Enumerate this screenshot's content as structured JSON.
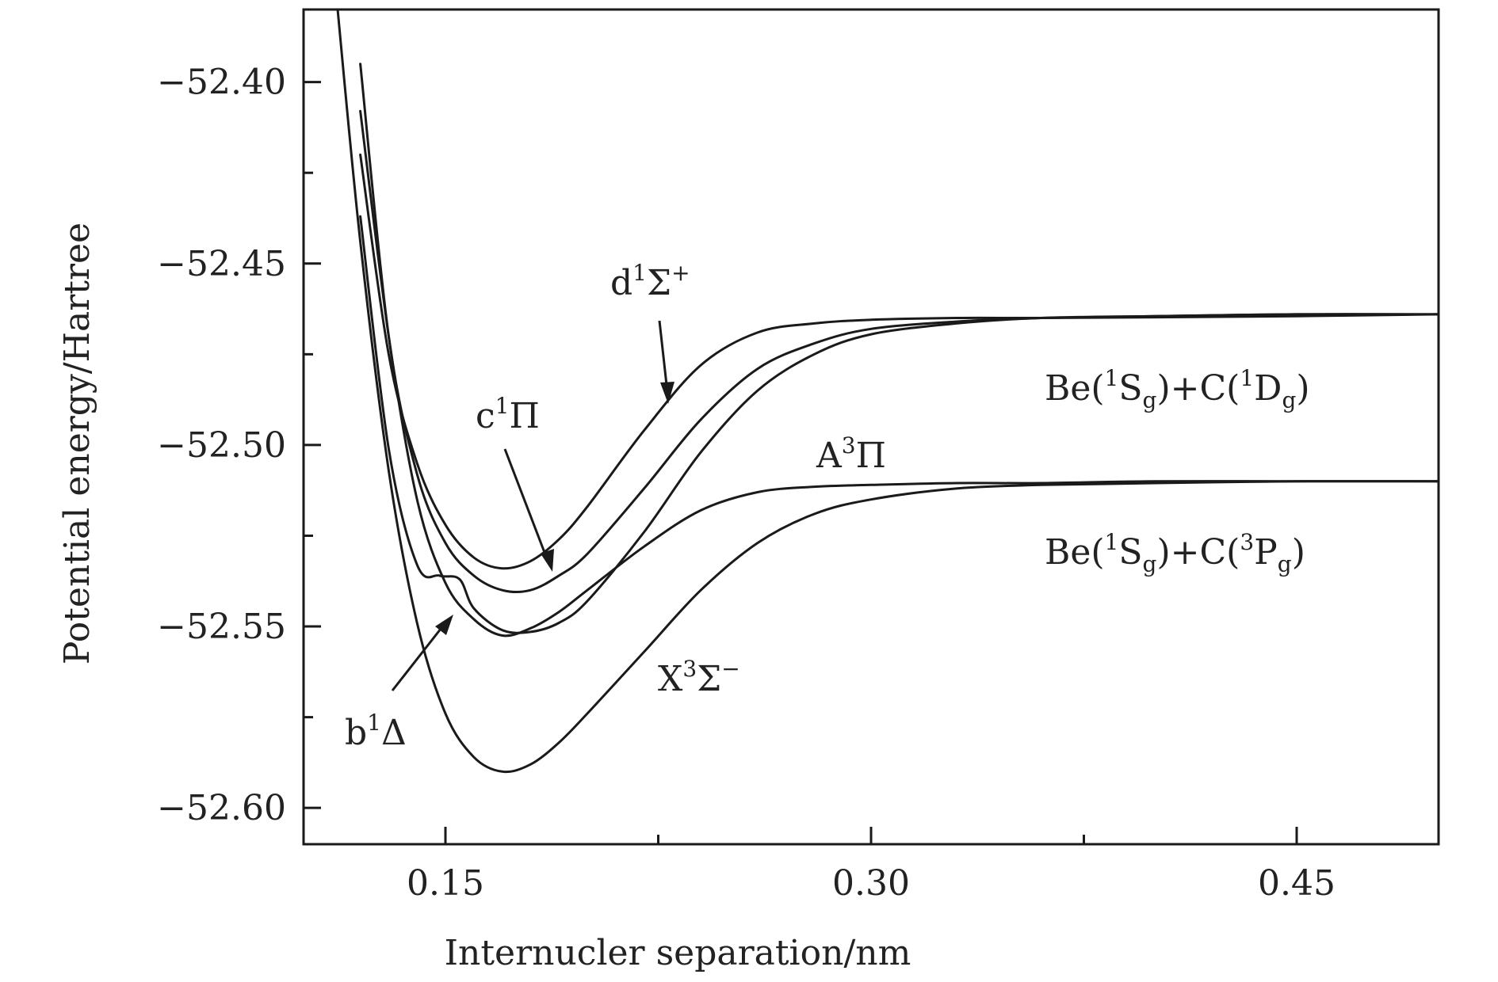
{
  "chart_data": {
    "type": "line",
    "xlabel": "Internucler separation/nm",
    "ylabel": "Potential energy/Hartree",
    "xlim": [
      0.1,
      0.5
    ],
    "ylim": [
      -52.61,
      -52.38
    ],
    "x_ticks": [
      0.15,
      0.3,
      0.45
    ],
    "x_tick_labels": [
      "0.15",
      "0.30",
      "0.45"
    ],
    "x_minor_ticks": [
      0.225,
      0.375
    ],
    "y_ticks": [
      -52.4,
      -52.45,
      -52.5,
      -52.55,
      -52.6
    ],
    "y_tick_labels": [
      "−52.40",
      "−52.45",
      "−52.50",
      "−52.55",
      "−52.60"
    ],
    "y_minor_ticks": [
      -52.425,
      -52.475,
      -52.525,
      -52.575
    ],
    "grid": false,
    "series": [
      {
        "name": "X³Σ⁻",
        "x": [
          0.112,
          0.12,
          0.13,
          0.14,
          0.15,
          0.16,
          0.17,
          0.18,
          0.19,
          0.2,
          0.22,
          0.24,
          0.26,
          0.28,
          0.3,
          0.33,
          0.36,
          0.4,
          0.45,
          0.5
        ],
        "y": [
          -52.38,
          -52.444,
          -52.507,
          -52.549,
          -52.574,
          -52.586,
          -52.59,
          -52.588,
          -52.582,
          -52.574,
          -52.557,
          -52.54,
          -52.527,
          -52.519,
          -52.515,
          -52.512,
          -52.511,
          -52.5105,
          -52.51,
          -52.51
        ]
      },
      {
        "name": "A³Π",
        "x": [
          0.12,
          0.13,
          0.14,
          0.15,
          0.16,
          0.17,
          0.18,
          0.19,
          0.2,
          0.22,
          0.24,
          0.26,
          0.28,
          0.3,
          0.33,
          0.36,
          0.4,
          0.45,
          0.5
        ],
        "y": [
          -52.408,
          -52.47,
          -52.515,
          -52.538,
          -52.548,
          -52.5525,
          -52.5505,
          -52.546,
          -52.54,
          -52.528,
          -52.518,
          -52.513,
          -52.5115,
          -52.511,
          -52.5105,
          -52.5105,
          -52.51,
          -52.51,
          -52.51
        ]
      },
      {
        "name": "b¹Δ",
        "x": [
          0.12,
          0.13,
          0.14,
          0.148,
          0.155,
          0.16,
          0.17,
          0.18,
          0.19,
          0.2,
          0.22,
          0.24,
          0.26,
          0.28,
          0.3,
          0.33,
          0.36,
          0.4,
          0.45,
          0.5
        ],
        "y": [
          -52.437,
          -52.501,
          -52.533,
          -52.536,
          -52.537,
          -52.545,
          -52.551,
          -52.5515,
          -52.549,
          -52.543,
          -52.524,
          -52.502,
          -52.485,
          -52.475,
          -52.4695,
          -52.4665,
          -52.465,
          -52.4645,
          -52.464,
          -52.464
        ]
      },
      {
        "name": "c¹Π",
        "x": [
          0.12,
          0.13,
          0.14,
          0.15,
          0.16,
          0.17,
          0.18,
          0.19,
          0.2,
          0.22,
          0.24,
          0.26,
          0.28,
          0.3,
          0.33,
          0.36,
          0.4,
          0.45,
          0.5
        ],
        "y": [
          -52.395,
          -52.47,
          -52.508,
          -52.527,
          -52.536,
          -52.54,
          -52.54,
          -52.536,
          -52.53,
          -52.512,
          -52.493,
          -52.479,
          -52.472,
          -52.468,
          -52.466,
          -52.465,
          -52.4645,
          -52.464,
          -52.464
        ]
      },
      {
        "name": "d¹Σ⁺",
        "x": [
          0.12,
          0.13,
          0.14,
          0.15,
          0.16,
          0.17,
          0.18,
          0.19,
          0.2,
          0.22,
          0.24,
          0.26,
          0.28,
          0.3,
          0.33,
          0.36,
          0.4,
          0.45,
          0.5
        ],
        "y": [
          -52.42,
          -52.475,
          -52.505,
          -52.522,
          -52.531,
          -52.534,
          -52.532,
          -52.526,
          -52.517,
          -52.496,
          -52.478,
          -52.469,
          -52.4665,
          -52.4655,
          -52.465,
          -52.465,
          -52.4648,
          -52.4645,
          -52.464
        ]
      }
    ],
    "annotations": [
      {
        "main": "d",
        "sup": "1",
        "tail": "Σ",
        "tail_sup": "+"
      },
      {
        "main": "c",
        "sup": "1",
        "tail": "Π"
      },
      {
        "main": "A",
        "sup": "3",
        "tail": "Π"
      },
      {
        "main": "b",
        "sup": "1",
        "tail": "Δ"
      },
      {
        "main": "X",
        "sup": "3",
        "tail": "Σ",
        "tail_sup": "−"
      },
      {
        "main": "Be(",
        "sup": "1",
        "tail": "S",
        "tail_sub": "g",
        "tail2": ")+C(",
        "sup2": "1",
        "tail3": "D",
        "tail3_sub": "g",
        "tail4": ")"
      },
      {
        "main": "Be(",
        "sup": "1",
        "tail": "S",
        "tail_sub": "g",
        "tail2": ")+C(",
        "sup2": "3",
        "tail3": "P",
        "tail3_sub": "g",
        "tail4": ")"
      }
    ]
  }
}
